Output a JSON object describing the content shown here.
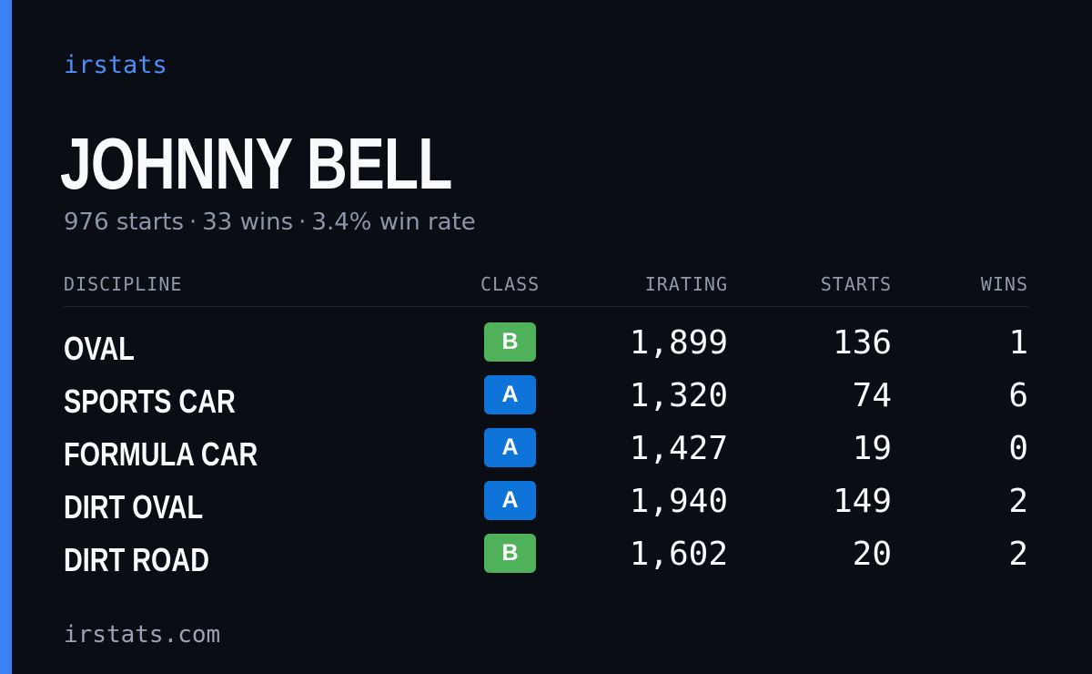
{
  "brand": "irstats",
  "driver": {
    "name": "JOHNNY BELL",
    "starts_text": "976 starts",
    "wins_text": "33 wins",
    "win_rate_text": "3.4% win rate",
    "separator": "·"
  },
  "table": {
    "headers": {
      "discipline": "DISCIPLINE",
      "class": "CLASS",
      "irating": "IRATING",
      "starts": "STARTS",
      "wins": "WINS"
    },
    "rows": [
      {
        "discipline": "OVAL",
        "class": "B",
        "irating": "1,899",
        "starts": "136",
        "wins": "1"
      },
      {
        "discipline": "SPORTS CAR",
        "class": "A",
        "irating": "1,320",
        "starts": "74",
        "wins": "6"
      },
      {
        "discipline": "FORMULA CAR",
        "class": "A",
        "irating": "1,427",
        "starts": "19",
        "wins": "0"
      },
      {
        "discipline": "DIRT OVAL",
        "class": "A",
        "irating": "1,940",
        "starts": "149",
        "wins": "2"
      },
      {
        "discipline": "DIRT ROAD",
        "class": "B",
        "irating": "1,602",
        "starts": "20",
        "wins": "2"
      }
    ]
  },
  "colors": {
    "accent": "#3b82f6",
    "class_a": "#0f74d9",
    "class_b": "#4fb15a",
    "background": "#0a0d14"
  },
  "footer": "irstats.com"
}
